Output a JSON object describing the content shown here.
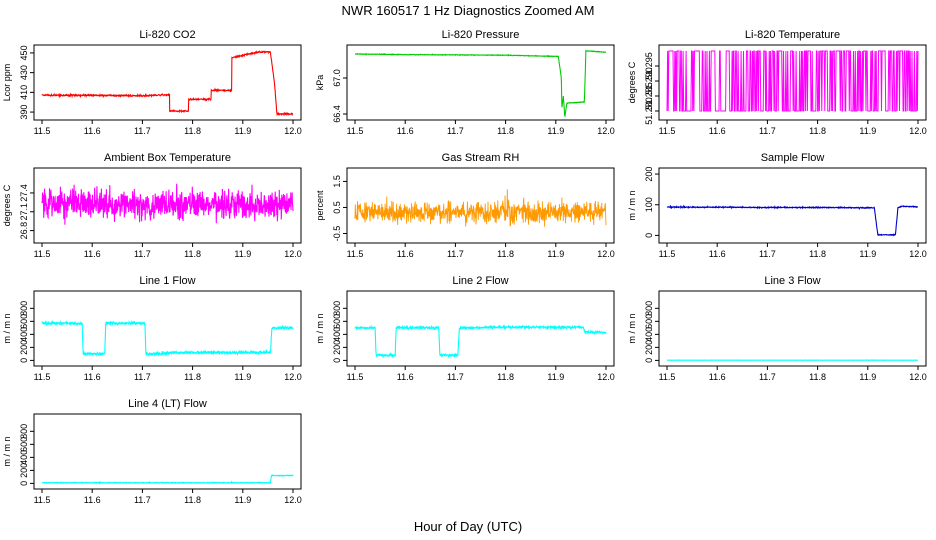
{
  "figure": {
    "title": "NWR  160517  1 Hz Diagnostics Zoomed AM",
    "xlabel": "Hour of Day (UTC)"
  },
  "chart_data": [
    {
      "type": "line",
      "title": "Li-820 CO2",
      "ylabel": "Lcor ppm",
      "color": "#ff0000",
      "xlim": [
        11.5,
        12.0
      ],
      "ylim": [
        385,
        455
      ],
      "xticks": [
        "11.5",
        "11.6",
        "11.7",
        "11.8",
        "11.9",
        "12.0"
      ],
      "yticks": [
        {
          "v": 390,
          "l": "390"
        },
        {
          "v": 410,
          "l": "410"
        },
        {
          "v": 430,
          "l": "430"
        },
        {
          "v": 450,
          "l": "450"
        }
      ],
      "x": [
        11.5,
        11.6,
        11.7,
        11.74,
        11.754,
        11.754,
        11.792,
        11.792,
        11.837,
        11.837,
        11.878,
        11.878,
        11.93,
        11.955,
        11.963,
        11.968,
        12.0
      ],
      "y": [
        407,
        407,
        406.5,
        407.5,
        407.5,
        391,
        391,
        403,
        403,
        412,
        412,
        445,
        451,
        451,
        420,
        388,
        388
      ],
      "noise": 0.6
    },
    {
      "type": "line",
      "title": "Li-820 Pressure",
      "ylabel": "kPa",
      "color": "#00cc00",
      "xlim": [
        11.5,
        12.0
      ],
      "ylim": [
        66.35,
        67.5
      ],
      "xticks": [
        "11.5",
        "11.6",
        "11.7",
        "11.8",
        "11.9",
        "12.0"
      ],
      "yticks": [
        {
          "v": 66.4,
          "l": "66.4"
        },
        {
          "v": 67.0,
          "l": "67.0"
        }
      ],
      "x": [
        11.5,
        11.6,
        11.7,
        11.8,
        11.85,
        11.905,
        11.911,
        11.912,
        11.915,
        11.918,
        11.922,
        11.957,
        11.958,
        11.96,
        11.965,
        12.0
      ],
      "y": [
        67.4,
        67.39,
        67.385,
        67.38,
        67.37,
        67.36,
        67.0,
        66.5,
        66.7,
        66.35,
        66.58,
        66.6,
        66.9,
        67.45,
        67.45,
        67.43
      ],
      "noise": 0.004
    },
    {
      "type": "line",
      "title": "Li-820 Temperature",
      "ylabel": "degrees C",
      "color": "#ff00ff",
      "xlim": [
        11.5,
        12.0
      ],
      "ylim": [
        51.278,
        51.301
      ],
      "xticks": [
        "11.5",
        "11.6",
        "11.7",
        "11.8",
        "11.9",
        "12.0"
      ],
      "yticks": [
        {
          "v": 51.28,
          "l": "51.280"
        },
        {
          "v": 51.285,
          "l": "51.285"
        },
        {
          "v": 51.29,
          "l": "51.290"
        },
        {
          "v": 51.295,
          "l": "51.295"
        }
      ],
      "levels": [
        51.28,
        51.3
      ]
    },
    {
      "type": "line",
      "title": "Ambient Box Temperature",
      "ylabel": "degrees C",
      "color": "#ff00ff",
      "xlim": [
        11.5,
        12.0
      ],
      "ylim": [
        26.65,
        27.75
      ],
      "xticks": [
        "11.5",
        "11.6",
        "11.7",
        "11.8",
        "11.9",
        "12.0"
      ],
      "yticks": [
        {
          "v": 26.8,
          "l": "26.8"
        },
        {
          "v": 27.1,
          "l": "27.1"
        },
        {
          "v": 27.4,
          "l": "27.4"
        }
      ],
      "x": [
        11.5,
        12.0
      ],
      "y": [
        27.22,
        27.22
      ],
      "noise": 0.18
    },
    {
      "type": "line",
      "title": "Gas Stream RH",
      "ylabel": "percent",
      "color": "#ff9900",
      "xlim": [
        11.5,
        12.0
      ],
      "ylim": [
        -0.75,
        1.9
      ],
      "xticks": [
        "11.5",
        "11.6",
        "11.7",
        "11.8",
        "11.9",
        "12.0"
      ],
      "yticks": [
        {
          "v": -0.5,
          "l": "-0.5"
        },
        {
          "v": 0.5,
          "l": "0.5"
        },
        {
          "v": 1.5,
          "l": "1.5"
        }
      ],
      "x": [
        11.5,
        12.0
      ],
      "y": [
        0.3,
        0.3
      ],
      "noise": 0.35,
      "points": true
    },
    {
      "type": "line",
      "title": "Sample Flow",
      "ylabel": "m / m n",
      "color": "#0000cc",
      "xlim": [
        11.5,
        12.0
      ],
      "ylim": [
        -15,
        210
      ],
      "xticks": [
        "11.5",
        "11.6",
        "11.7",
        "11.8",
        "11.9",
        "12.0"
      ],
      "yticks": [
        {
          "v": 0,
          "l": "0"
        },
        {
          "v": 100,
          "l": "100"
        },
        {
          "v": 200,
          "l": "200"
        }
      ],
      "x": [
        11.5,
        11.6,
        11.7,
        11.8,
        11.9,
        11.913,
        11.92,
        11.925,
        11.955,
        11.96,
        11.968,
        12.0
      ],
      "y": [
        92,
        92,
        91,
        91,
        90,
        90,
        2,
        2,
        2,
        90,
        95,
        93
      ],
      "noise": 1.2
    },
    {
      "type": "line",
      "title": "Line 1 Flow",
      "ylabel": "m / m n",
      "color": "#00ffff",
      "xlim": [
        11.5,
        12.0
      ],
      "ylim": [
        -40,
        1020
      ],
      "xticks": [
        "11.5",
        "11.6",
        "11.7",
        "11.8",
        "11.9",
        "12.0"
      ],
      "yticks": [
        {
          "v": 0,
          "l": "0"
        },
        {
          "v": 200,
          "l": "200"
        },
        {
          "v": 400,
          "l": "400"
        },
        {
          "v": 600,
          "l": "600"
        },
        {
          "v": 800,
          "l": "800"
        }
      ],
      "x": [
        11.5,
        11.58,
        11.582,
        11.625,
        11.627,
        11.705,
        11.707,
        11.745,
        11.75,
        11.955,
        11.958,
        12.0
      ],
      "y": [
        570,
        570,
        100,
        100,
        570,
        570,
        100,
        100,
        120,
        120,
        500,
        500
      ],
      "noise": 18
    },
    {
      "type": "line",
      "title": "Line 2 Flow",
      "ylabel": "m / m n",
      "color": "#00ffff",
      "xlim": [
        11.5,
        12.0
      ],
      "ylim": [
        -40,
        1020
      ],
      "xticks": [
        "11.5",
        "11.6",
        "11.7",
        "11.8",
        "11.9",
        "12.0"
      ],
      "yticks": [
        {
          "v": 0,
          "l": "0"
        },
        {
          "v": 200,
          "l": "200"
        },
        {
          "v": 400,
          "l": "400"
        },
        {
          "v": 600,
          "l": "600"
        },
        {
          "v": 800,
          "l": "800"
        }
      ],
      "x": [
        11.5,
        11.54,
        11.542,
        11.58,
        11.582,
        11.667,
        11.669,
        11.705,
        11.708,
        11.8,
        11.955,
        11.958,
        12.0
      ],
      "y": [
        500,
        500,
        80,
        80,
        500,
        500,
        80,
        80,
        500,
        510,
        510,
        430,
        430
      ],
      "noise": 15
    },
    {
      "type": "line",
      "title": "Line 3 Flow",
      "ylabel": "m / m n",
      "color": "#00ffff",
      "xlim": [
        11.5,
        12.0
      ],
      "ylim": [
        -40,
        1020
      ],
      "xticks": [
        "11.5",
        "11.6",
        "11.7",
        "11.8",
        "11.9",
        "12.0"
      ],
      "yticks": [
        {
          "v": 0,
          "l": "0"
        },
        {
          "v": 200,
          "l": "200"
        },
        {
          "v": 400,
          "l": "400"
        },
        {
          "v": 600,
          "l": "600"
        },
        {
          "v": 800,
          "l": "800"
        }
      ],
      "x": [
        11.5,
        12.0
      ],
      "y": [
        3,
        3
      ],
      "noise": 1
    },
    {
      "type": "line",
      "title": "Line 4 (LT) Flow",
      "ylabel": "m / m n",
      "color": "#00ffff",
      "xlim": [
        11.5,
        12.0
      ],
      "ylim": [
        -40,
        1020
      ],
      "xticks": [
        "11.5",
        "11.6",
        "11.7",
        "11.8",
        "11.9",
        "12.0"
      ],
      "yticks": [
        {
          "v": 0,
          "l": "0"
        },
        {
          "v": 200,
          "l": "200"
        },
        {
          "v": 400,
          "l": "400"
        },
        {
          "v": 600,
          "l": "600"
        },
        {
          "v": 800,
          "l": "800"
        }
      ],
      "x": [
        11.5,
        11.955,
        11.957,
        12.0
      ],
      "y": [
        10,
        10,
        120,
        120
      ],
      "noise": 4
    }
  ]
}
